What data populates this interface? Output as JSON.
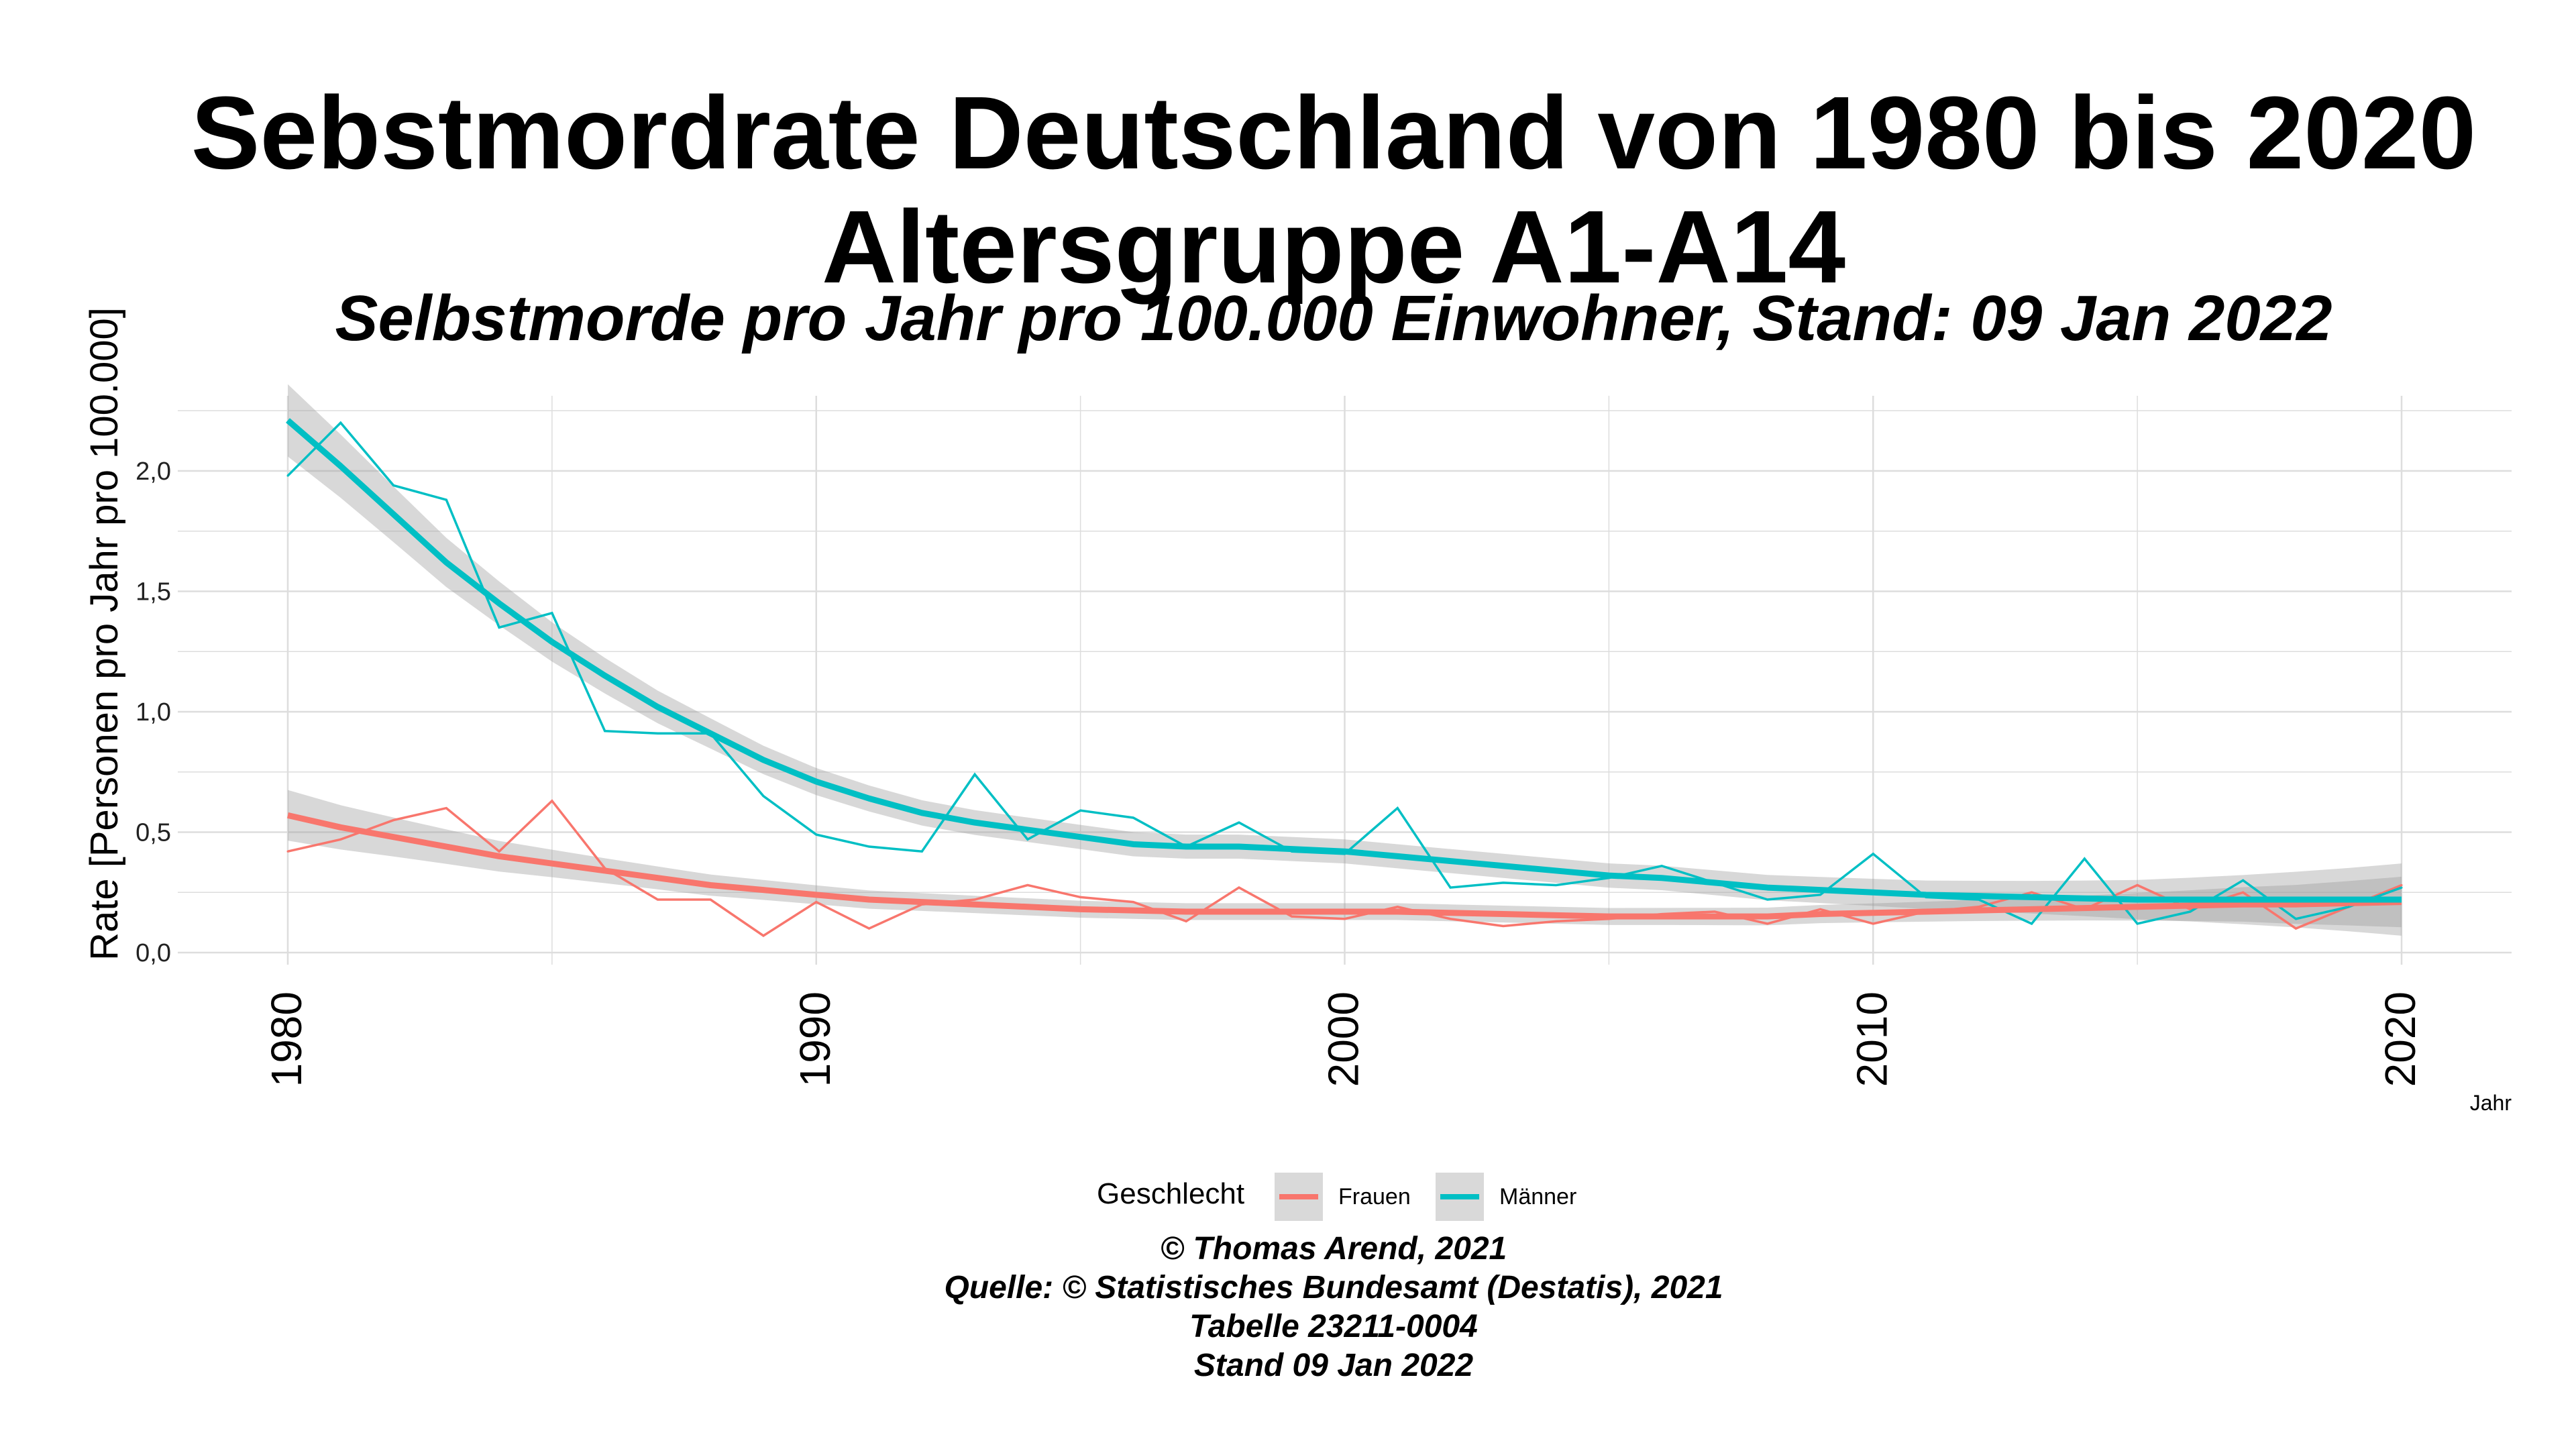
{
  "title_line1": "Sebstmordrate Deutschland von  1980 bis 2020",
  "title_line2": "Altersgruppe A1-A14",
  "subtitle": "Selbstmorde pro Jahr pro 100.000 Einwohner, Stand: 09 Jan 2022",
  "captions": [
    "© Thomas Arend, 2021",
    "Quelle: © Statistisches Bundesamt (Destatis), 2021",
    "Tabelle 23211-0004",
    "Stand 09 Jan 2022"
  ],
  "colors": {
    "frauen": "#F8766D",
    "maenner": "#00BFC4",
    "band": "#999999",
    "grid": "#DDDDDD"
  },
  "chart_data": {
    "type": "line",
    "xlabel": "Jahr",
    "ylabel": "Rate [Personen pro Jahr pro 100.000]",
    "xlim": [
      1978.8,
      2022
    ],
    "ylim": [
      -0.1,
      2.45
    ],
    "x_ticks": [
      1980,
      1990,
      2000,
      2010,
      2020
    ],
    "y_ticks": [
      0,
      0.5,
      1,
      1.5,
      2
    ],
    "y_tick_labels": [
      "0,0",
      "0,5",
      "1,0",
      "1,5",
      "2,0"
    ],
    "grid": true,
    "legend": {
      "title": "Geschlecht",
      "position": "bottom",
      "entries": [
        "Frauen",
        "Männer"
      ]
    },
    "x": [
      1980,
      1981,
      1982,
      1983,
      1984,
      1985,
      1986,
      1987,
      1988,
      1989,
      1990,
      1991,
      1992,
      1993,
      1994,
      1995,
      1996,
      1997,
      1998,
      1999,
      2000,
      2001,
      2002,
      2003,
      2004,
      2005,
      2006,
      2007,
      2008,
      2009,
      2010,
      2011,
      2012,
      2013,
      2014,
      2015,
      2016,
      2017,
      2018,
      2019,
      2020
    ],
    "series": [
      {
        "name": "Frauen",
        "values": [
          0.42,
          0.47,
          0.55,
          0.6,
          0.42,
          0.63,
          0.35,
          0.22,
          0.22,
          0.07,
          0.21,
          0.1,
          0.2,
          0.22,
          0.28,
          0.23,
          0.21,
          0.13,
          0.27,
          0.15,
          0.14,
          0.19,
          0.14,
          0.11,
          0.13,
          0.14,
          0.16,
          0.17,
          0.12,
          0.18,
          0.12,
          0.17,
          0.19,
          0.25,
          0.18,
          0.28,
          0.18,
          0.25,
          0.1,
          0.19,
          0.28
        ],
        "smooth": [
          0.57,
          0.52,
          0.48,
          0.44,
          0.4,
          0.37,
          0.34,
          0.31,
          0.28,
          0.26,
          0.24,
          0.22,
          0.21,
          0.2,
          0.19,
          0.18,
          0.175,
          0.17,
          0.17,
          0.17,
          0.17,
          0.17,
          0.165,
          0.16,
          0.155,
          0.15,
          0.15,
          0.15,
          0.15,
          0.16,
          0.165,
          0.17,
          0.175,
          0.18,
          0.185,
          0.19,
          0.195,
          0.2,
          0.2,
          0.205,
          0.21
        ]
      },
      {
        "name": "Männer",
        "values": [
          1.98,
          2.2,
          1.94,
          1.88,
          1.35,
          1.41,
          0.92,
          0.91,
          0.91,
          0.65,
          0.49,
          0.44,
          0.42,
          0.74,
          0.47,
          0.59,
          0.56,
          0.44,
          0.54,
          0.42,
          0.41,
          0.6,
          0.27,
          0.29,
          0.28,
          0.31,
          0.36,
          0.29,
          0.22,
          0.24,
          0.41,
          0.23,
          0.22,
          0.12,
          0.39,
          0.12,
          0.17,
          0.3,
          0.14,
          0.19,
          0.27
        ],
        "smooth": [
          2.21,
          2.02,
          1.82,
          1.62,
          1.45,
          1.29,
          1.15,
          1.02,
          0.91,
          0.8,
          0.71,
          0.64,
          0.58,
          0.54,
          0.51,
          0.48,
          0.45,
          0.44,
          0.44,
          0.43,
          0.42,
          0.4,
          0.38,
          0.36,
          0.34,
          0.32,
          0.31,
          0.29,
          0.27,
          0.26,
          0.25,
          0.24,
          0.235,
          0.23,
          0.225,
          0.22,
          0.22,
          0.22,
          0.22,
          0.22,
          0.22
        ]
      }
    ]
  }
}
